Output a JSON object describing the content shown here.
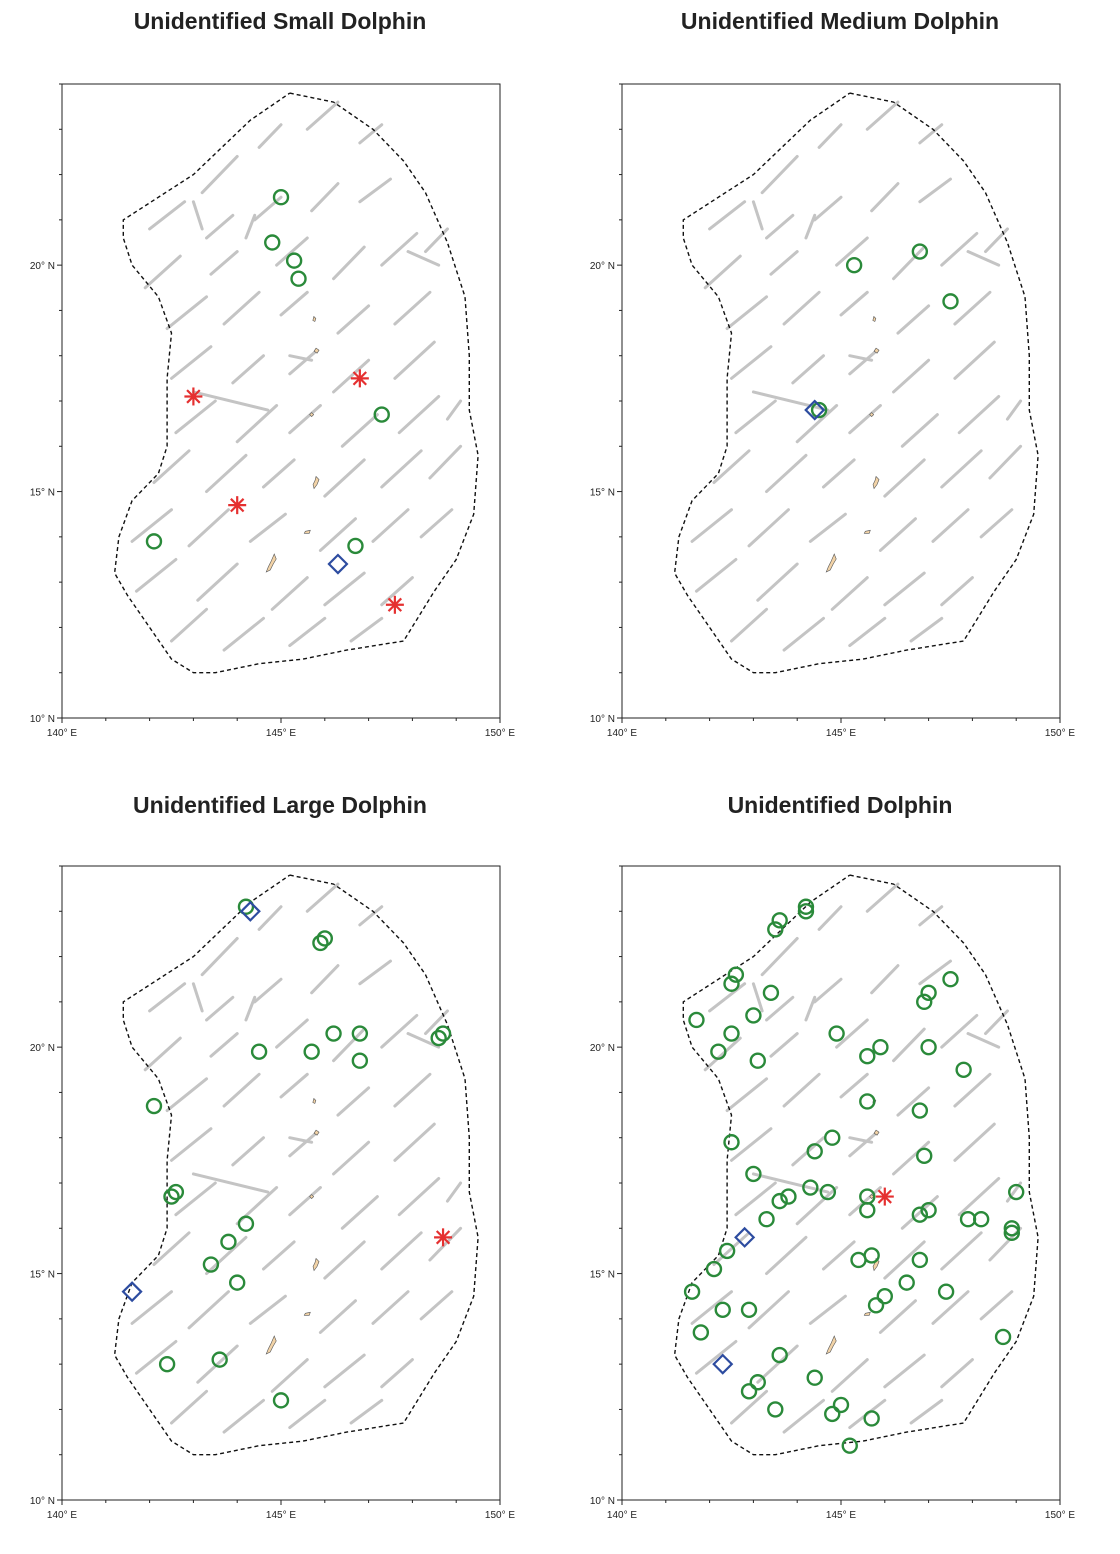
{
  "colors": {
    "track": "#c4c4c4",
    "boundary": "#111111",
    "circle": "#2a8a3a",
    "diamond": "#2d4ca0",
    "star": "#e53030",
    "island": "#f2d3a7"
  },
  "axes": {
    "x_ticks": [
      {
        "value": 140,
        "label": "140° E"
      },
      {
        "value": 145,
        "label": "145° E"
      },
      {
        "value": 150,
        "label": "150° E"
      }
    ],
    "y_ticks": [
      {
        "value": 10,
        "label": "10° N"
      },
      {
        "value": 15,
        "label": "15° N"
      },
      {
        "value": 20,
        "label": "20° N"
      }
    ],
    "xlim": [
      140,
      150
    ],
    "ylim": [
      10,
      24
    ]
  },
  "boundary": [
    [
      145.2,
      23.8
    ],
    [
      146.2,
      23.6
    ],
    [
      147.1,
      23.0
    ],
    [
      147.8,
      22.3
    ],
    [
      148.3,
      21.6
    ],
    [
      148.8,
      20.5
    ],
    [
      149.2,
      19.3
    ],
    [
      149.3,
      18.0
    ],
    [
      149.3,
      16.8
    ],
    [
      149.5,
      15.8
    ],
    [
      149.4,
      14.5
    ],
    [
      149.0,
      13.5
    ],
    [
      148.5,
      12.8
    ],
    [
      147.8,
      11.7
    ],
    [
      146.5,
      11.5
    ],
    [
      145.5,
      11.3
    ],
    [
      144.5,
      11.2
    ],
    [
      143.5,
      11.0
    ],
    [
      143.0,
      11.0
    ],
    [
      142.5,
      11.3
    ],
    [
      142.0,
      12.0
    ],
    [
      141.5,
      12.7
    ],
    [
      141.2,
      13.2
    ],
    [
      141.3,
      14.0
    ],
    [
      141.6,
      14.8
    ],
    [
      142.2,
      15.4
    ],
    [
      142.4,
      16.0
    ],
    [
      142.4,
      17.5
    ],
    [
      142.5,
      18.5
    ],
    [
      142.2,
      19.3
    ],
    [
      141.6,
      20.0
    ],
    [
      141.4,
      20.6
    ],
    [
      141.4,
      21.0
    ],
    [
      143.0,
      22.0
    ],
    [
      144.3,
      23.2
    ],
    [
      145.2,
      23.8
    ]
  ],
  "islands": [
    [
      145.75,
      18.8
    ],
    [
      145.8,
      18.1
    ],
    [
      145.7,
      16.7
    ],
    [
      145.8,
      15.2
    ],
    [
      145.6,
      14.1
    ],
    [
      144.8,
      13.4
    ]
  ],
  "panels": [
    {
      "title": "Unidentified Small Dolphin",
      "chart_data": {
        "type": "scatter",
        "title": "Unidentified Small Dolphin",
        "xlim": [
          140,
          150
        ],
        "ylim": [
          10,
          24
        ],
        "series": [
          {
            "marker": "circle",
            "points": [
              [
                145.0,
                21.5
              ],
              [
                144.8,
                20.5
              ],
              [
                145.3,
                20.1
              ],
              [
                145.4,
                19.7
              ],
              [
                147.3,
                16.7
              ],
              [
                142.1,
                13.9
              ],
              [
                146.7,
                13.8
              ]
            ]
          },
          {
            "marker": "diamond",
            "points": [
              [
                146.3,
                13.4
              ]
            ]
          },
          {
            "marker": "star",
            "points": [
              [
                143.0,
                17.1
              ],
              [
                146.8,
                17.5
              ],
              [
                144.0,
                14.7
              ],
              [
                147.6,
                12.5
              ]
            ]
          }
        ]
      }
    },
    {
      "title": "Unidentified Medium Dolphin",
      "chart_data": {
        "type": "scatter",
        "title": "Unidentified Medium Dolphin",
        "xlim": [
          140,
          150
        ],
        "ylim": [
          10,
          24
        ],
        "series": [
          {
            "marker": "circle",
            "points": [
              [
                145.3,
                20.0
              ],
              [
                146.8,
                20.3
              ],
              [
                147.5,
                19.2
              ],
              [
                144.5,
                16.8
              ]
            ]
          },
          {
            "marker": "diamond",
            "points": [
              [
                144.4,
                16.8
              ]
            ]
          },
          {
            "marker": "star",
            "points": []
          }
        ]
      }
    },
    {
      "title": "Unidentified Large Dolphin",
      "chart_data": {
        "type": "scatter",
        "title": "Unidentified Large Dolphin",
        "xlim": [
          140,
          150
        ],
        "ylim": [
          10,
          24
        ],
        "series": [
          {
            "marker": "circle",
            "points": [
              [
                144.2,
                23.1
              ],
              [
                146.0,
                22.4
              ],
              [
                145.9,
                22.3
              ],
              [
                144.5,
                19.9
              ],
              [
                145.7,
                19.9
              ],
              [
                146.2,
                20.3
              ],
              [
                146.8,
                20.3
              ],
              [
                146.8,
                19.7
              ],
              [
                148.6,
                20.2
              ],
              [
                148.7,
                20.3
              ],
              [
                142.1,
                18.7
              ],
              [
                142.5,
                16.7
              ],
              [
                142.6,
                16.8
              ],
              [
                144.2,
                16.1
              ],
              [
                143.8,
                15.7
              ],
              [
                143.4,
                15.2
              ],
              [
                144.0,
                14.8
              ],
              [
                142.4,
                13.0
              ],
              [
                143.6,
                13.1
              ],
              [
                145.0,
                12.2
              ]
            ]
          },
          {
            "marker": "diamond",
            "points": [
              [
                144.3,
                23.0
              ],
              [
                141.6,
                14.6
              ]
            ]
          },
          {
            "marker": "star",
            "points": [
              [
                148.7,
                15.8
              ]
            ]
          }
        ]
      }
    },
    {
      "title": "Unidentified Dolphin",
      "chart_data": {
        "type": "scatter",
        "title": "Unidentified Dolphin",
        "xlim": [
          140,
          150
        ],
        "ylim": [
          10,
          24
        ],
        "series": [
          {
            "marker": "circle",
            "points": [
              [
                144.2,
                23.1
              ],
              [
                144.2,
                23.0
              ],
              [
                143.6,
                22.8
              ],
              [
                143.5,
                22.6
              ],
              [
                142.6,
                21.6
              ],
              [
                142.5,
                21.4
              ],
              [
                143.4,
                21.2
              ],
              [
                141.7,
                20.6
              ],
              [
                142.2,
                19.9
              ],
              [
                142.5,
                20.3
              ],
              [
                143.0,
                20.7
              ],
              [
                143.1,
                19.7
              ],
              [
                144.9,
                20.3
              ],
              [
                145.6,
                19.8
              ],
              [
                145.9,
                20.0
              ],
              [
                146.9,
                21.0
              ],
              [
                147.0,
                21.2
              ],
              [
                147.5,
                21.5
              ],
              [
                147.0,
                20.0
              ],
              [
                147.8,
                19.5
              ],
              [
                145.6,
                18.8
              ],
              [
                146.8,
                18.6
              ],
              [
                142.5,
                17.9
              ],
              [
                143.0,
                17.2
              ],
              [
                144.8,
                18.0
              ],
              [
                144.4,
                17.7
              ],
              [
                146.9,
                17.6
              ],
              [
                143.3,
                16.2
              ],
              [
                143.6,
                16.6
              ],
              [
                143.8,
                16.7
              ],
              [
                144.3,
                16.9
              ],
              [
                144.7,
                16.8
              ],
              [
                145.6,
                16.7
              ],
              [
                145.6,
                16.4
              ],
              [
                146.8,
                16.3
              ],
              [
                147.0,
                16.4
              ],
              [
                147.9,
                16.2
              ],
              [
                148.2,
                16.2
              ],
              [
                149.0,
                16.8
              ],
              [
                148.9,
                15.9
              ],
              [
                148.9,
                16.0
              ],
              [
                142.4,
                15.5
              ],
              [
                142.1,
                15.1
              ],
              [
                141.6,
                14.6
              ],
              [
                145.4,
                15.3
              ],
              [
                145.7,
                15.4
              ],
              [
                145.8,
                14.3
              ],
              [
                146.0,
                14.5
              ],
              [
                146.5,
                14.8
              ],
              [
                146.8,
                15.3
              ],
              [
                147.4,
                14.6
              ],
              [
                142.3,
                14.2
              ],
              [
                142.9,
                14.2
              ],
              [
                141.8,
                13.7
              ],
              [
                143.6,
                13.2
              ],
              [
                142.9,
                12.4
              ],
              [
                143.1,
                12.6
              ],
              [
                143.5,
                12.0
              ],
              [
                144.4,
                12.7
              ],
              [
                144.8,
                11.9
              ],
              [
                145.0,
                12.1
              ],
              [
                145.7,
                11.8
              ],
              [
                145.2,
                11.2
              ],
              [
                148.7,
                13.6
              ]
            ]
          },
          {
            "marker": "diamond",
            "points": [
              [
                142.8,
                15.8
              ],
              [
                142.3,
                13.0
              ]
            ]
          },
          {
            "marker": "star",
            "points": [
              [
                146.0,
                16.7
              ]
            ]
          }
        ]
      }
    }
  ]
}
